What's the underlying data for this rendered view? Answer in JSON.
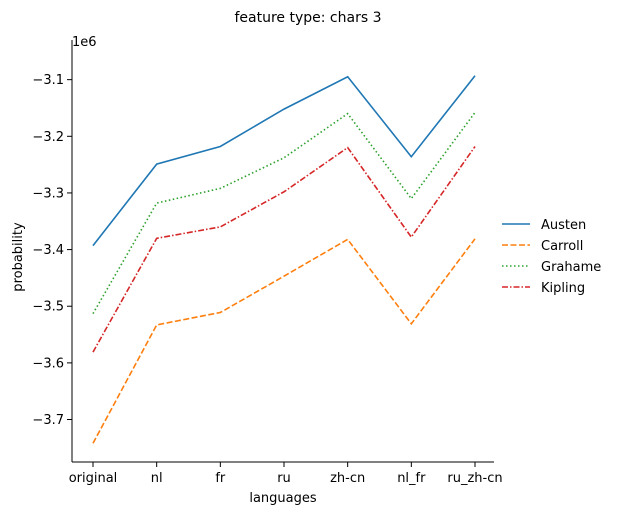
{
  "chart_data": {
    "type": "line",
    "title": "feature type: chars 3",
    "xlabel": "languages",
    "ylabel": "probability",
    "y_offset_label": "1e6",
    "categories": [
      "original",
      "nl",
      "fr",
      "ru",
      "zh-cn",
      "nl_fr",
      "ru_zh-cn"
    ],
    "ylim": [
      -3.775,
      -3.03
    ],
    "yticks": [
      -3.7,
      -3.6,
      -3.5,
      -3.4,
      -3.3,
      -3.2,
      -3.1
    ],
    "ytick_labels": [
      "−3.7",
      "−3.6",
      "−3.5",
      "−3.4",
      "−3.3",
      "−3.2",
      "−3.1"
    ],
    "grid": false,
    "legend_position": "right",
    "series": [
      {
        "name": "Austen",
        "color": "#1f77b4",
        "dash": "solid",
        "values": [
          -3.393,
          -3.249,
          -3.218,
          -3.152,
          -3.095,
          -3.236,
          -3.093
        ]
      },
      {
        "name": "Carroll",
        "color": "#ff7f0e",
        "dash": "dashed",
        "values": [
          -3.742,
          -3.533,
          -3.511,
          -3.447,
          -3.382,
          -3.531,
          -3.381
        ]
      },
      {
        "name": "Grahame",
        "color": "#2ca02c",
        "dash": "dotted",
        "values": [
          -3.513,
          -3.318,
          -3.292,
          -3.238,
          -3.16,
          -3.31,
          -3.158
        ]
      },
      {
        "name": "Kipling",
        "color": "#d62728",
        "dash": "dashdot",
        "values": [
          -3.581,
          -3.38,
          -3.36,
          -3.298,
          -3.22,
          -3.378,
          -3.218
        ]
      }
    ]
  }
}
